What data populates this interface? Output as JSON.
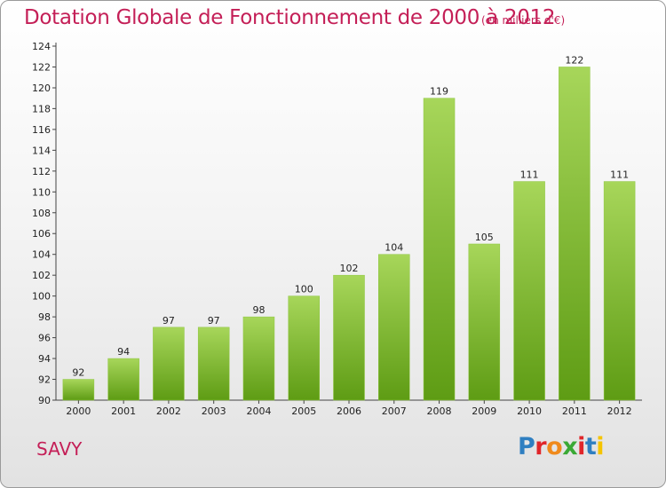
{
  "header": {
    "title": "Dotation Globale de Fonctionnement de 2000 à 2012",
    "subtitle": "(en milliers d'€)"
  },
  "footer": {
    "commune": "SAVY",
    "logo": "Proxiti",
    "logo_colors": [
      "#2f7fc1",
      "#e0262a",
      "#f08a1c",
      "#3aa935",
      "#e0262a",
      "#2f7fc1",
      "#f5c400"
    ]
  },
  "chart_data": {
    "type": "bar",
    "categories": [
      "2000",
      "2001",
      "2002",
      "2003",
      "2004",
      "2005",
      "2006",
      "2007",
      "2008",
      "2009",
      "2010",
      "2011",
      "2012"
    ],
    "values": [
      92,
      94,
      97,
      97,
      98,
      100,
      102,
      104,
      119,
      105,
      111,
      122,
      111
    ],
    "ylim": [
      90,
      124
    ],
    "yticks": [
      90,
      92,
      94,
      96,
      98,
      100,
      102,
      104,
      106,
      108,
      110,
      112,
      114,
      116,
      118,
      120,
      122,
      124
    ],
    "grid": false,
    "bar_color_top": "#a7d65a",
    "bar_color_bottom": "#5e9c14",
    "title_color": "#c41f57"
  }
}
